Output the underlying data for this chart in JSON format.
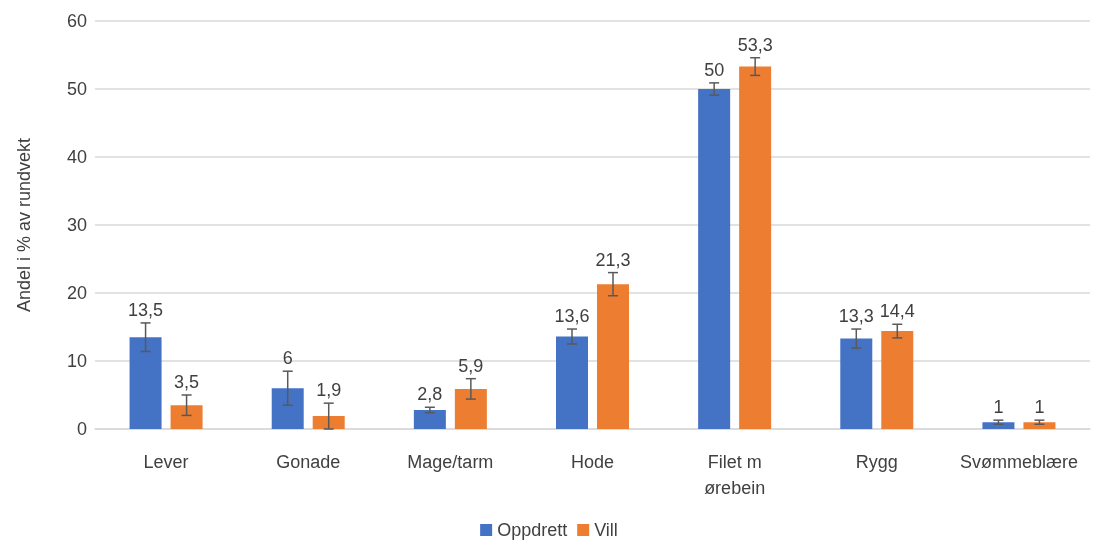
{
  "chart_data": {
    "type": "bar",
    "ylabel": "Andel i % av rundvekt",
    "categories": [
      "Lever",
      "Gonade",
      "Mage/tarm",
      "Hode",
      "Filet m\nørebein",
      "Rygg",
      "Svømmeblære"
    ],
    "series": [
      {
        "name": "Oppdrett",
        "color": "#4472c4",
        "values": [
          13.5,
          6,
          2.8,
          13.6,
          50,
          13.3,
          1
        ],
        "value_labels": [
          "13,5",
          "6",
          "2,8",
          "13,6",
          "50",
          "13,3",
          "1"
        ],
        "errors": [
          2.1,
          2.5,
          0.4,
          1.1,
          0.9,
          1.4,
          0.3
        ]
      },
      {
        "name": "Vill",
        "color": "#ed7d31",
        "values": [
          3.5,
          1.9,
          5.9,
          21.3,
          53.3,
          14.4,
          1
        ],
        "value_labels": [
          "3,5",
          "1,9",
          "5,9",
          "21,3",
          "53,3",
          "14,4",
          "1"
        ],
        "errors": [
          1.5,
          1.9,
          1.5,
          1.7,
          1.3,
          1.0,
          0.3
        ]
      }
    ],
    "ylim": [
      0,
      60
    ],
    "yticks": [
      0,
      10,
      20,
      30,
      40,
      50,
      60
    ],
    "grid": "y",
    "legend": "bottom"
  }
}
